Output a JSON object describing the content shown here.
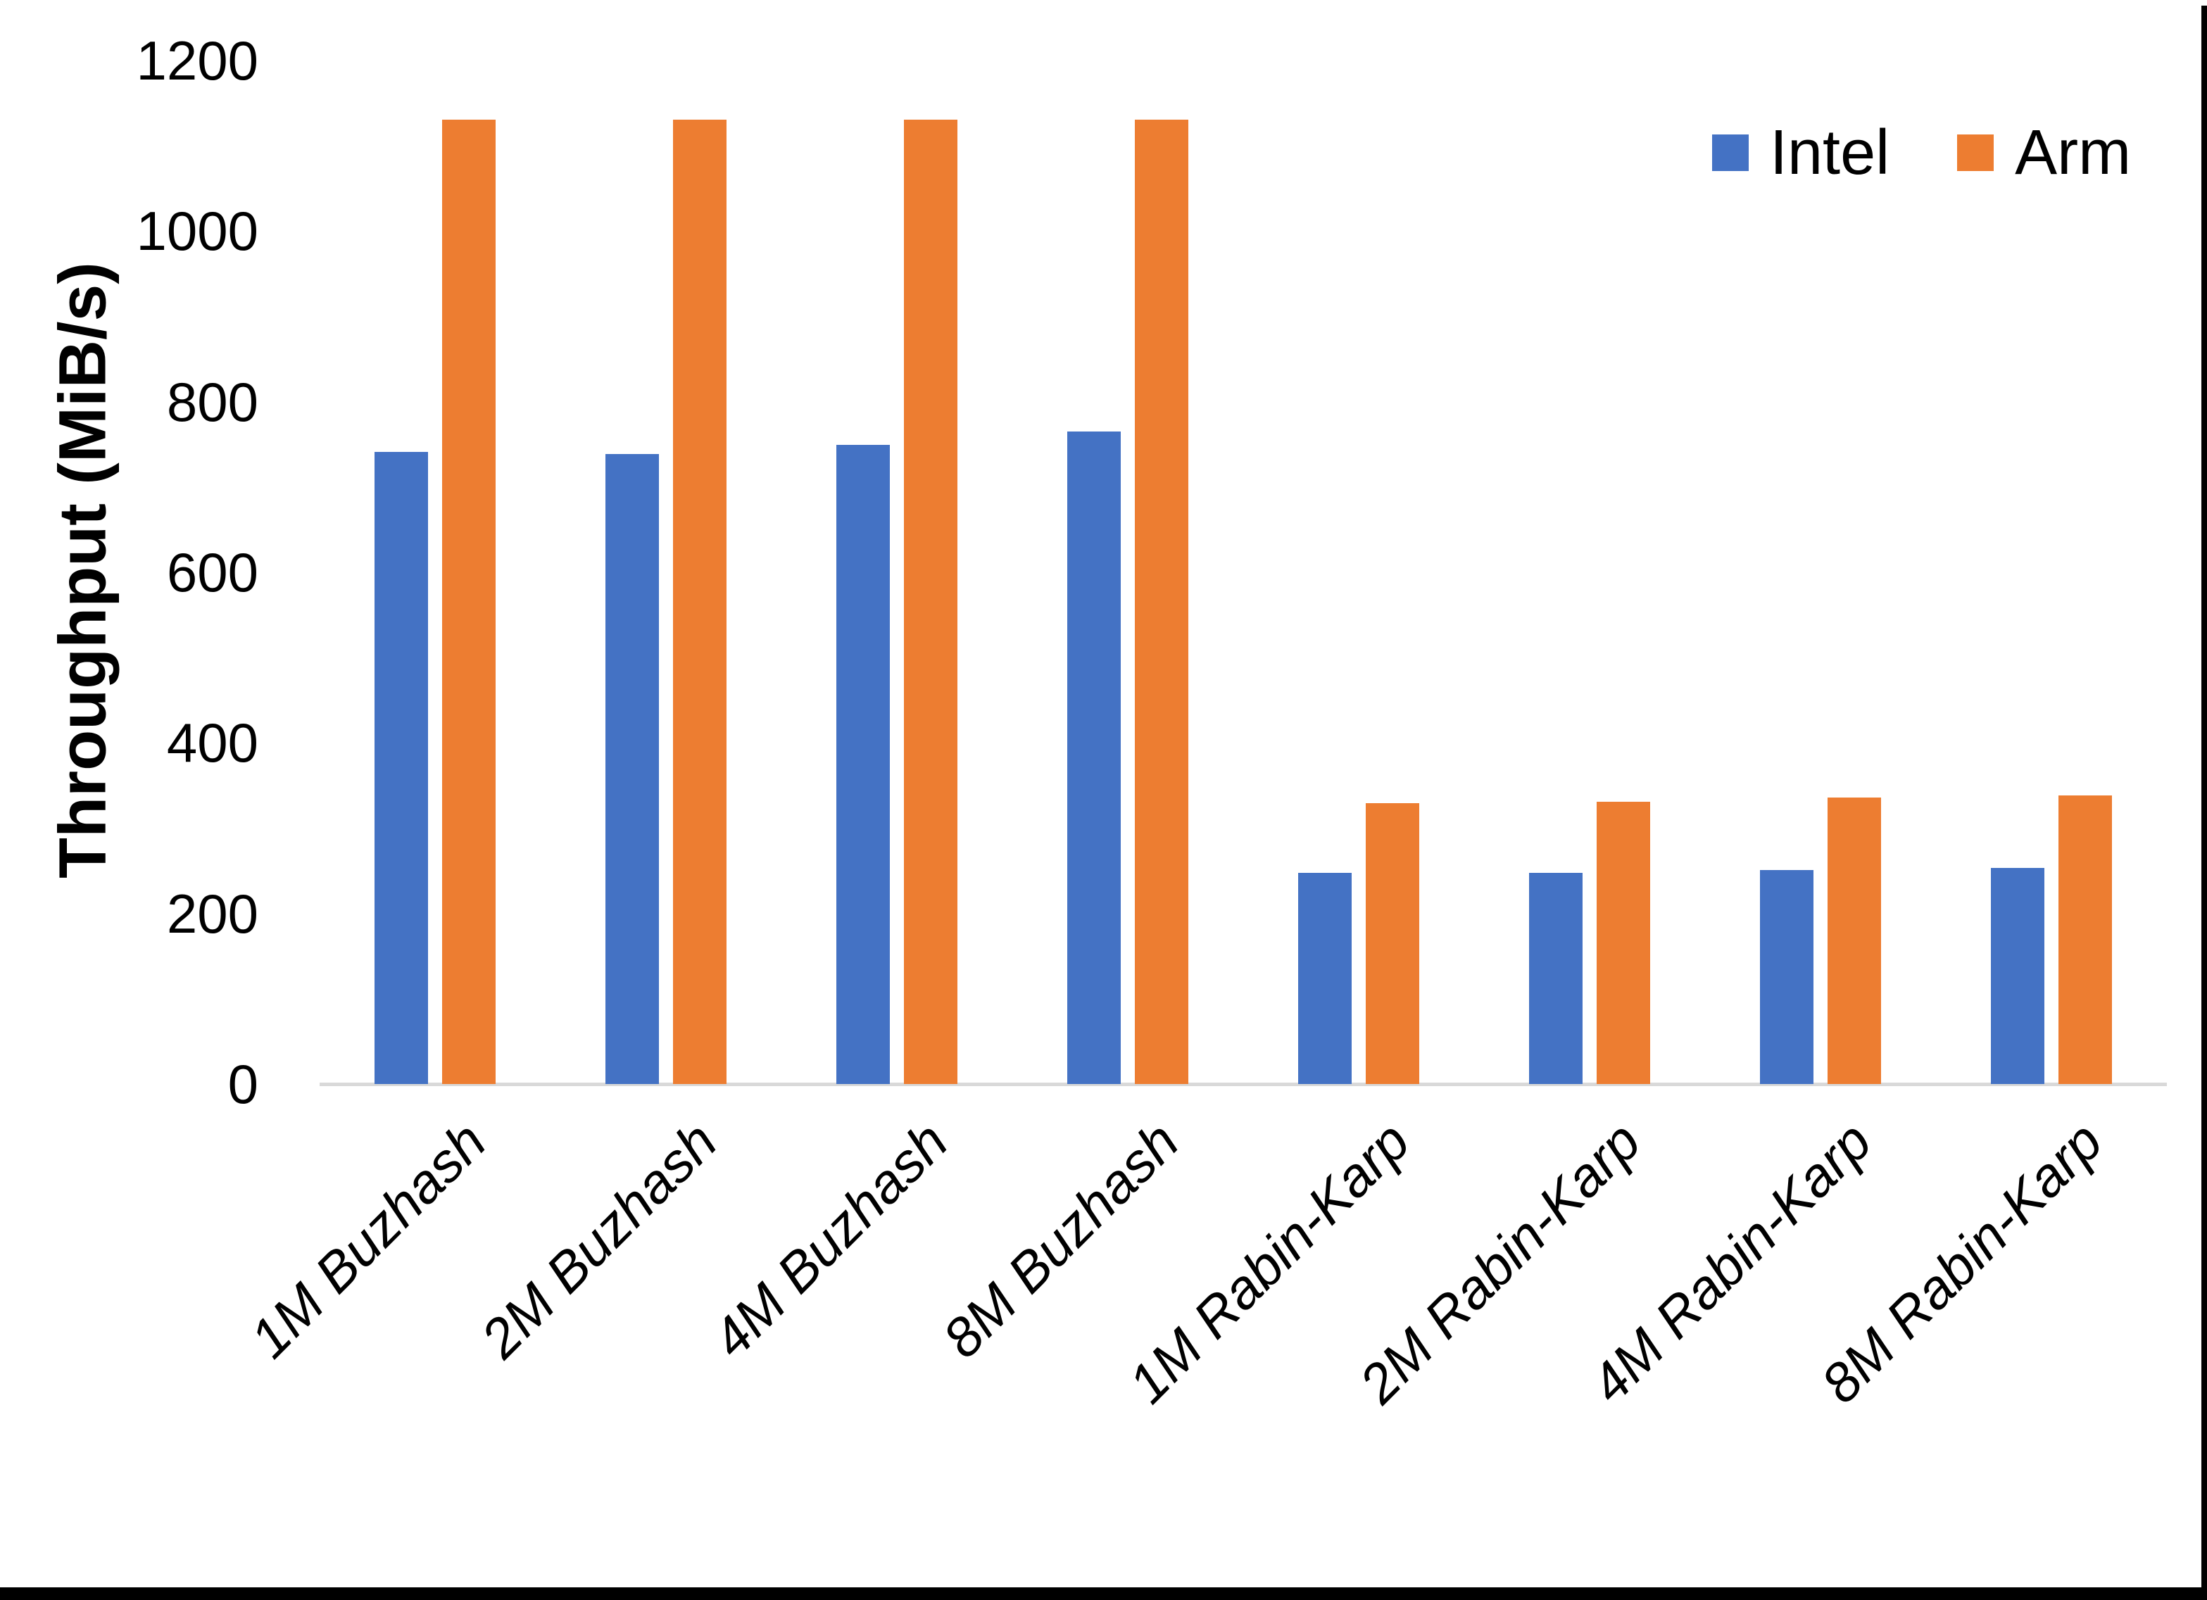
{
  "chart_data": {
    "type": "bar",
    "title": "",
    "xlabel": "",
    "ylabel": "Throughput (MiB/s)",
    "categories": [
      "1M Buzhash",
      "2M Buzhash",
      "4M Buzhash",
      "8M Buzhash",
      "1M Rabin-Karp",
      "2M Rabin-Karp",
      "4M Rabin-Karp",
      "8M Rabin-Karp"
    ],
    "series": [
      {
        "name": "Intel",
        "color": "#4472C4",
        "values": [
          741,
          739,
          749,
          765,
          248,
          248,
          251,
          253
        ]
      },
      {
        "name": "Arm",
        "color": "#ED7D31",
        "values": [
          1131,
          1131,
          1131,
          1131,
          329,
          331,
          336,
          338
        ]
      }
    ],
    "ylim": [
      0,
      1200
    ],
    "yticks": [
      0,
      200,
      400,
      600,
      800,
      1000,
      1200
    ],
    "grid": false,
    "legend_position": "top-right",
    "axis_line_color": "#D9D9D9",
    "text_color": "#000000",
    "category_label_style": "italic, rotated 45deg",
    "frame_border_color": "#000000"
  }
}
